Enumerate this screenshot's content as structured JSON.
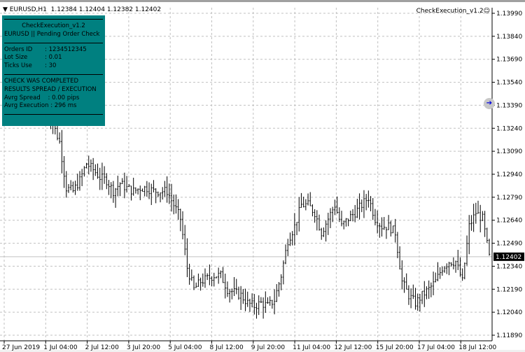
{
  "header": {
    "symbol": "EURUSD,H1",
    "ohlc": "1.12384 1.12404 1.12382 1.12402"
  },
  "expert": {
    "name": "CheckExecution_v1.2",
    "icon": "smiley-icon"
  },
  "panel": {
    "bg": "#008080",
    "title": "CheckExecution_v1.2",
    "subtitle": "EURUSD || Pending Order Check",
    "rows": [
      {
        "k": "Orders ID",
        "v": ":  1234512345"
      },
      {
        "k": "Lot Size",
        "v": ":  0.01"
      },
      {
        "k": "Ticks Use",
        "v": ":  30"
      }
    ],
    "status1": "CHECK WAS COMPLETED",
    "status2": "RESULTS SPREAD / EXECUTION",
    "spread": "Avrg Spread    : 0.00 pips",
    "execution": "Avrg Execution : 296 ms"
  },
  "chart_data": {
    "type": "ohlc-bar",
    "symbol": "EURUSD",
    "timeframe": "H1",
    "current_price": "1.12402",
    "y_ticks": [
      "1.13990",
      "1.13840",
      "1.13690",
      "1.13540",
      "1.13390",
      "1.13240",
      "1.13090",
      "1.12940",
      "1.12790",
      "1.12640",
      "1.12490",
      "1.12340",
      "1.12190",
      "1.12040",
      "1.11890"
    ],
    "ylim": [
      1.1189,
      1.1399
    ],
    "x_ticks": [
      "27 Jun 2019",
      "1 Jul 04:00",
      "2 Jul 12:00",
      "3 Jul 20:00",
      "5 Jul 04:00",
      "8 Jul 12:00",
      "9 Jul 20:00",
      "11 Jul 04:00",
      "12 Jul 12:00",
      "15 Jul 20:00",
      "17 Jul 04:00",
      "18 Jul 12:00"
    ],
    "grid": true,
    "approx_closes": [
      1.1338,
      1.1327,
      1.1315,
      1.1285,
      1.1283,
      1.129,
      1.1301,
      1.1297,
      1.1292,
      1.129,
      1.1283,
      1.1288,
      1.1285,
      1.1283,
      1.1285,
      1.1285,
      1.1283,
      1.1283,
      1.1283,
      1.1274,
      1.1265,
      1.1233,
      1.1219,
      1.1224,
      1.1226,
      1.1228,
      1.1228,
      1.1219,
      1.1217,
      1.1215,
      1.121,
      1.1208,
      1.121,
      1.1208,
      1.1212,
      1.1228,
      1.1251,
      1.126,
      1.1274,
      1.1274,
      1.1269,
      1.1256,
      1.1265,
      1.1274,
      1.126,
      1.1265,
      1.1269,
      1.1274,
      1.1279,
      1.1265,
      1.126,
      1.126,
      1.1256,
      1.1224,
      1.1215,
      1.121,
      1.1215,
      1.1219,
      1.1224,
      1.1233,
      1.1237,
      1.1237,
      1.1224,
      1.126,
      1.1269,
      1.1265,
      1.124
    ]
  }
}
